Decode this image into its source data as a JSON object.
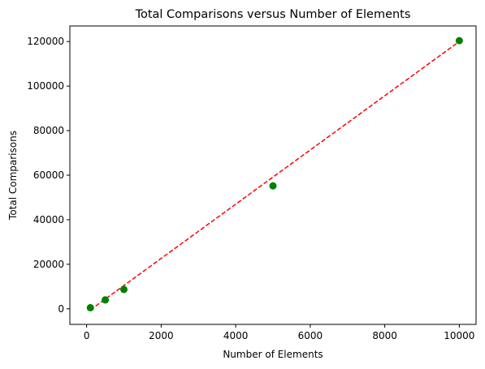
{
  "chart_data": {
    "type": "scatter",
    "title": "Total Comparisons versus Number of Elements",
    "xlabel": "Number of Elements",
    "ylabel": "Total Comparisons",
    "xlim": [
      -450,
      10450
    ],
    "ylim": [
      -7000,
      127000
    ],
    "xticks": [
      0,
      2000,
      4000,
      6000,
      8000,
      10000
    ],
    "xtick_labels": [
      "0",
      "2000",
      "4000",
      "6000",
      "8000",
      "10000"
    ],
    "yticks": [
      0,
      20000,
      40000,
      60000,
      80000,
      100000,
      120000
    ],
    "ytick_labels": [
      "0",
      "20000",
      "40000",
      "60000",
      "80000",
      "100000",
      "120000"
    ],
    "grid": false,
    "series": [
      {
        "kind": "scatter",
        "color": "#008000",
        "x": [
          100,
          500,
          1000,
          5000,
          10000
        ],
        "y": [
          500,
          4000,
          8700,
          55200,
          120400
        ]
      },
      {
        "kind": "dashed-line",
        "color": "#ff0000",
        "x": [
          100,
          10000
        ],
        "y": [
          -500,
          120000
        ]
      }
    ]
  }
}
